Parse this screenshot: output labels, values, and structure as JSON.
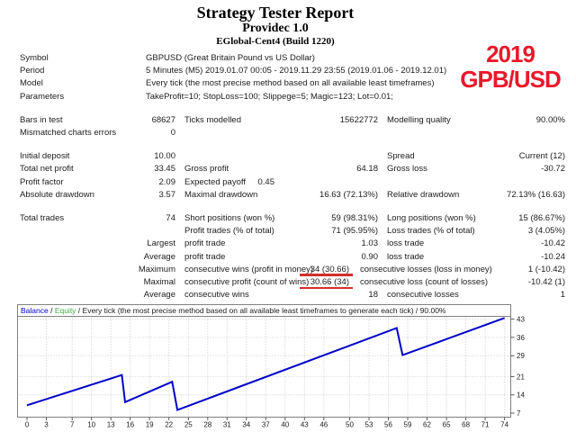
{
  "header": {
    "title": "Strategy Tester Report",
    "program": "Providec 1.0",
    "server": "EGlobal-Cent4 (Build 1220)"
  },
  "annotation": {
    "year": "2019",
    "pair": "GPB/USD",
    "color": "#e8192b"
  },
  "report": {
    "underline_color": "#d03028",
    "rows": [
      {
        "span": true,
        "cells": [
          "Symbol",
          "GBPUSD (Great Britain Pound vs US Dollar)"
        ]
      },
      {
        "span": true,
        "cells": [
          "Period",
          "5 Minutes (M5) 2019.01.07 00:05 - 2019.11.29 23:55 (2019.01.06 - 2019.12.01)"
        ]
      },
      {
        "span": true,
        "cells": [
          "Model",
          "Every tick (the most precise method based on all available least timeframes)"
        ]
      },
      {
        "span": true,
        "cells": [
          "Parameters",
          "TakeProfit=10; StopLoss=100; Slippege=5; Magic=123; Lot=0.01;"
        ]
      },
      {
        "type": "gap"
      },
      {
        "cells": [
          "Bars in test",
          "68627",
          "Ticks modelled",
          "15622772",
          "Modelling quality",
          "90.00%"
        ]
      },
      {
        "cells": [
          "Mismatched charts errors",
          "0",
          "",
          "",
          "",
          ""
        ]
      },
      {
        "type": "gap"
      },
      {
        "cells": [
          "Initial deposit",
          "10.00",
          "",
          "",
          "Spread",
          "Current (12)"
        ]
      },
      {
        "cells": [
          "Total net profit",
          "33.45",
          "Gross profit",
          "64.18",
          "Gross loss",
          "-30.72"
        ]
      },
      {
        "cells": [
          "Profit factor",
          "2.09",
          "Expected payoff",
          "0.45",
          "",
          ""
        ],
        "c4_short": true
      },
      {
        "cells": [
          "Absolute drawdown",
          "3.57",
          "Maximal drawdown",
          "16.63 (72.13%)",
          "Relative drawdown",
          "72.13% (16.63)"
        ]
      },
      {
        "type": "gap"
      },
      {
        "cells": [
          "Total trades",
          "74",
          "Short positions (won %)",
          "59 (98.31%)",
          "Long positions (won %)",
          "15 (86.67%)"
        ]
      },
      {
        "cells": [
          "",
          "",
          "Profit trades (% of total)",
          "71 (95.95%)",
          "Loss trades (% of total)",
          "3 (4.05%)"
        ]
      },
      {
        "cells": [
          "",
          "Largest",
          "profit trade",
          "1.03",
          "loss trade",
          "-10.42"
        ]
      },
      {
        "cells": [
          "",
          "Average",
          "profit trade",
          "0.90",
          "loss trade",
          "-10.24"
        ]
      },
      {
        "cells": [
          "",
          "Maximum",
          "consecutive wins (profit in money)",
          "34 (30.66)",
          "consecutive losses (loss in money)",
          "1 (-10.42)"
        ],
        "underline": true
      },
      {
        "cells": [
          "",
          "Maximal",
          "consecutive profit (count of wins)",
          "30.66 (34)",
          "consecutive loss (count of losses)",
          "-10.42 (1)"
        ],
        "underline": true
      },
      {
        "cells": [
          "",
          "Average",
          "consecutive wins",
          "18",
          "consecutive losses",
          "1"
        ]
      }
    ]
  },
  "chart_data": {
    "type": "line",
    "caption": {
      "balance": "Balance",
      "sep1": " / ",
      "equity": "Equity",
      "sep2": " / ",
      "rest": "Every tick (the most precise method based on all available least timeframes to generate each tick) / 90.00%"
    },
    "x_ticks": [
      0,
      3,
      7,
      10,
      13,
      16,
      19,
      22,
      25,
      28,
      31,
      34,
      37,
      40,
      43,
      46,
      50,
      53,
      56,
      59,
      62,
      65,
      68,
      71,
      74
    ],
    "y_ticks": [
      7,
      14,
      21,
      29,
      36,
      43
    ],
    "xlim": [
      0,
      74
    ],
    "ylim": [
      7,
      44
    ],
    "grid": "dotted",
    "legend_position": "top-strip",
    "series": [
      {
        "name": "Balance",
        "color": "#0000c8",
        "points": [
          [
            0,
            10.0
          ],
          [
            14.7,
            21.6
          ],
          [
            15.2,
            11.2
          ],
          [
            22.5,
            19.0
          ],
          [
            23.3,
            8.2
          ],
          [
            57.3,
            39.6
          ],
          [
            58.2,
            29.2
          ],
          [
            74,
            43.45
          ]
        ]
      },
      {
        "name": "Equity",
        "color": "#3cb043",
        "note": "overlaps Balance line"
      }
    ]
  }
}
